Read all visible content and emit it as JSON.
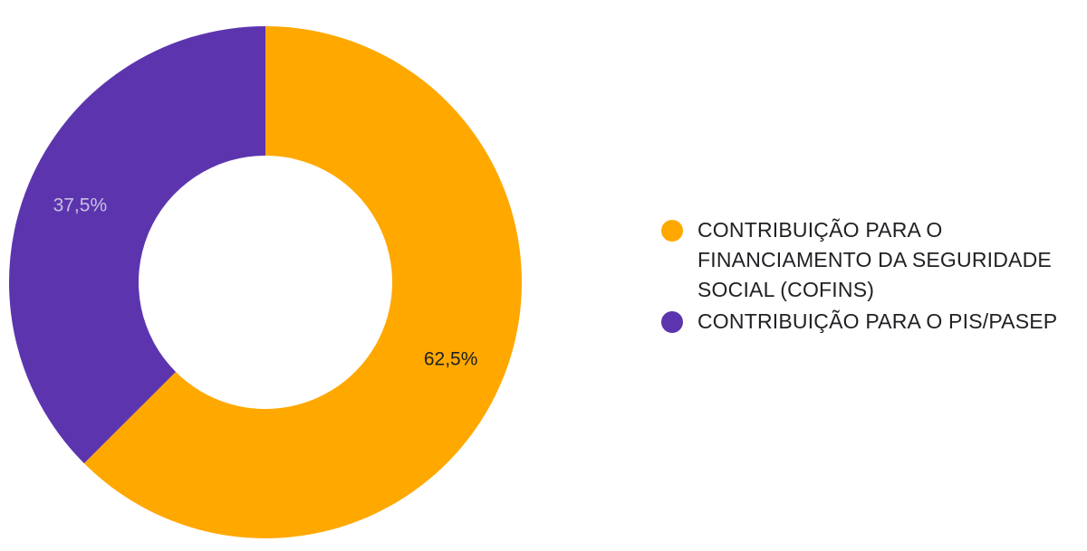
{
  "chart_data": {
    "type": "pie",
    "donut": true,
    "title": "",
    "legend_position": "right",
    "slices": [
      {
        "label": "CONTRIBUIÇÃO PARA O FINANCIAMENTO DA SEGURIDADE SOCIAL (COFINS)",
        "value": 62.5,
        "value_label": "62,5%",
        "color": "#FFA800",
        "label_color": "#202124"
      },
      {
        "label": "CONTRIBUIÇÃO PARA O PIS/PASEP",
        "value": 37.5,
        "value_label": "37,5%",
        "color": "#5C35AE",
        "label_color": "#C9BFE3"
      }
    ]
  },
  "legend": {
    "items": [
      {
        "label": "CONTRIBUIÇÃO PARA O FINANCIAMENTO DA SEGURIDADE SOCIAL (COFINS)",
        "color": "#FFA800"
      },
      {
        "label": "CONTRIBUIÇÃO PARA O PIS/PASEP",
        "color": "#5C35AE"
      }
    ]
  }
}
